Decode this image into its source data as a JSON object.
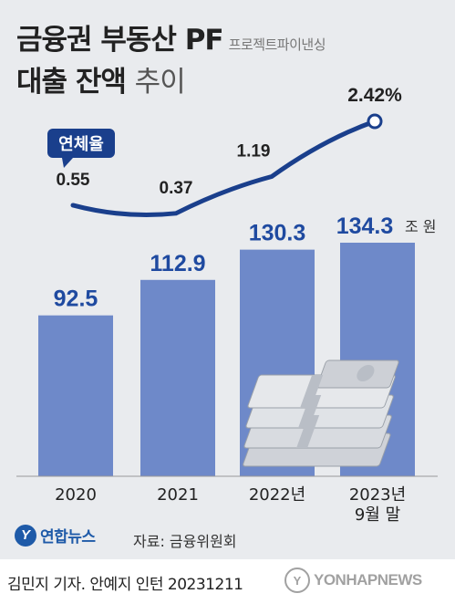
{
  "title": {
    "line1": "금융권 부동산 PF",
    "line1_sub": "프로젝트파이낸싱",
    "line2_bold": "대출 잔액",
    "line2_light": "추이"
  },
  "colors": {
    "bar": "#6e89c9",
    "line": "#1a3f8c",
    "bar_label": "#1f4aa0",
    "panel": "#e9ebee"
  },
  "chart_data": [
    {
      "type": "bar",
      "categories": [
        "2020",
        "2021",
        "2022년",
        "2023년\n9월 말"
      ],
      "values": [
        92.5,
        112.9,
        130.3,
        134.3
      ],
      "value_labels": [
        "92.5",
        "112.9",
        "130.3",
        "134.3"
      ],
      "unit": "조 원",
      "ylim": [
        0,
        134.3
      ]
    },
    {
      "type": "line",
      "name": "연체율",
      "x": [
        "2020",
        "2021",
        "2022년",
        "2023년\n9월 말"
      ],
      "values": [
        0.55,
        0.37,
        1.19,
        2.42
      ],
      "value_labels": [
        "0.55",
        "0.37",
        "1.19",
        "2.42%"
      ],
      "ylim": [
        0,
        2.42
      ]
    }
  ],
  "footer": {
    "logo_text": "연합뉴스",
    "source": "자료: 금융위원회",
    "credit": "김민지 기자. 안예지 인턴  20231211",
    "watermark": "YONHAPNEWS"
  },
  "icons": {
    "logo": "yonhap-logo-icon",
    "money": "banknote-stack-icon",
    "watermark": "yonhap-watermark-icon"
  }
}
